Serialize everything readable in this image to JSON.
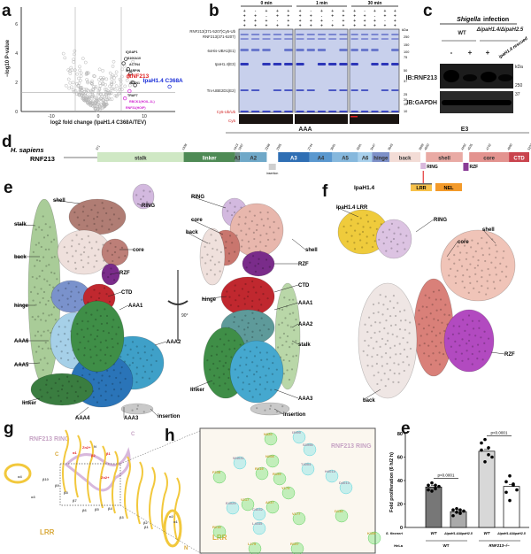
{
  "panels": {
    "a": "a",
    "b": "b",
    "c": "c",
    "d": "d",
    "e": "e",
    "f": "f",
    "g": "g",
    "h": "h",
    "e2": "e"
  },
  "volcano": {
    "chart_data": {
      "type": "scatter",
      "xlabel": "log2 fold change (IpaH1.4 C368A/TEV)",
      "ylabel": "−log10 P-value",
      "xlim": [
        -16,
        16
      ],
      "ylim": [
        0,
        6.5
      ],
      "xticks": [
        "-10",
        "0",
        "10"
      ],
      "yticks": [
        "0",
        "2",
        "4",
        "6"
      ],
      "thresholds": {
        "x": [
          -5,
          5
        ],
        "y": 1.3
      },
      "labeled_points": [
        {
          "label": "IQGAP1",
          "x": 6,
          "y": 3.6,
          "color": "#222222"
        },
        {
          "label": "S100A10",
          "x": 5.5,
          "y": 3.3,
          "color": "#222222"
        },
        {
          "label": "ACTN4",
          "x": 6.5,
          "y": 2.9,
          "color": "#222222"
        },
        {
          "label": "SHARPIN",
          "x": 7,
          "y": 2.6,
          "color": "#222222"
        },
        {
          "label": "RNF213",
          "x": 6.5,
          "y": 2.4,
          "color": "#e02020"
        },
        {
          "label": "ACTN1",
          "x": 7.5,
          "y": 2.0,
          "color": "#222222"
        },
        {
          "label": "IpaH1.4 C368A",
          "x": 15.5,
          "y": 1.7,
          "color": "#1a2ed8"
        },
        {
          "label": "TRAF7",
          "x": 8,
          "y": 1.8,
          "color": "#222222"
        },
        {
          "label": "RBCK1(HOIL-1L)",
          "x": 6.8,
          "y": 1.4,
          "color": "#d020d0"
        },
        {
          "label": "RNF31(HOIP)",
          "x": 5.8,
          "y": 0.9,
          "color": "#d020d0"
        }
      ]
    }
  },
  "gel": {
    "timepoints": [
      "0 min",
      "1 min",
      "30 min"
    ],
    "rows": [
      {
        "name": "E3",
        "values": [
          "+",
          "-",
          "+",
          "+",
          "+"
        ]
      },
      {
        "name": "E2",
        "values": [
          "+",
          "+",
          "-",
          "+",
          "+"
        ]
      },
      {
        "name": "E1",
        "values": [
          "+",
          "+",
          "+",
          "-",
          "+"
        ]
      },
      {
        "name": "ATP",
        "values": [
          "+",
          "+",
          "+",
          "+",
          "+"
        ]
      }
    ],
    "band_labels": [
      "RNF213(371-5207)Cy5-Ub",
      "RNF213(371-5207)",
      "6xHis-UBA1(E1)",
      "IpaH1.4(E3)",
      "Trx-UBE2D1(E2)",
      "Cy5-Ub/Ub"
    ],
    "cy5_label": "Cy5",
    "kda": "kDa",
    "markers": [
      "250",
      "150",
      "100",
      "75",
      "50",
      "37",
      "25",
      "20",
      "15",
      "10"
    ]
  },
  "western": {
    "title_italic": "Shigella",
    "title": "infection",
    "groups": [
      "WT",
      "ΔipaH1.4/ΔipaH2.5"
    ],
    "lanes": [
      "-",
      "+",
      "+",
      "ipaH1.4 rescued"
    ],
    "blots": [
      "IB:RNF213",
      "IB:GAPDH"
    ],
    "kda": "kDa",
    "markers": [
      "250",
      "37"
    ]
  },
  "domain_map": {
    "species": "H. sapiens",
    "protein": "RNF213",
    "group_labels": [
      "AAA",
      "E3"
    ],
    "domains": [
      {
        "name": "stalk",
        "start": 371,
        "end": 1338,
        "color": "#cfe8c4"
      },
      {
        "name": "linker",
        "start": 1338,
        "end": 1913,
        "color": "#4e8a55"
      },
      {
        "name": "A1",
        "start": 1913,
        "end": 1967,
        "color": "#6f8e8c"
      },
      {
        "name": "A2",
        "start": 1967,
        "end": 2268,
        "color": "#6fa8c8"
      },
      {
        "name": "A3",
        "start": 2395,
        "end": 2744,
        "color": "#2f6fb4"
      },
      {
        "name": "A4",
        "start": 2744,
        "end": 3001,
        "color": "#5a98cf"
      },
      {
        "name": "A5",
        "start": 3001,
        "end": 3291,
        "color": "#86b8dd"
      },
      {
        "name": "A6",
        "start": 3291,
        "end": 3447,
        "color": "#a8d0ec"
      },
      {
        "name": "hinge",
        "start": 3447,
        "end": 3643,
        "color": "#7d90c8"
      },
      {
        "name": "back",
        "start": 3643,
        "end": 3989,
        "color": "#f3dcd6"
      },
      {
        "name": "shell",
        "start": 4050,
        "end": 4462,
        "color": "#e9aaa4"
      },
      {
        "name": "core",
        "start": 4535,
        "end": 4980,
        "color": "#e3938f"
      },
      {
        "name": "CTD",
        "start": 4980,
        "end": 5207,
        "color": "#c9434d"
      }
    ],
    "boundaries": [
      "371",
      "1338",
      "1913",
      "1967",
      "2268",
      "2395",
      "2744",
      "3001",
      "3291",
      "3447",
      "3643",
      "3989",
      "4050",
      "4462",
      "4535",
      "4742",
      "4980",
      "5207"
    ],
    "insertion": "insertion",
    "ring": "RING",
    "rzf": "RZF",
    "ipah": {
      "name": "IpaH1.4",
      "domains": [
        "LRR",
        "NEL"
      ]
    }
  },
  "structure_e": {
    "left_labels": [
      "shell",
      "RING",
      "stalk",
      "back",
      "core",
      "RZF",
      "CTD",
      "hinge",
      "AAA1",
      "AAA6",
      "AAA2",
      "AAA5",
      "linker",
      "AAA4",
      "AAA3",
      "insertion"
    ],
    "right_labels": [
      "RING",
      "core",
      "back",
      "shell",
      "RZF",
      "CTD",
      "hinge",
      "AAA1",
      "AAA2",
      "stalk",
      "linker",
      "AAA3",
      "insertion"
    ],
    "rotation": "90°"
  },
  "structure_f": {
    "labels": [
      "IpaH1.4 LRR",
      "RING",
      "core",
      "shell",
      "RZF",
      "back"
    ]
  },
  "panel_g": {
    "title": "RNF213 RING",
    "lrr": "LRR",
    "labels": [
      "C",
      "α1",
      "Zn2+",
      "N",
      "β2",
      "β1",
      "Zn2+",
      "C",
      "α4",
      "β10",
      "β9",
      "β8",
      "α3",
      "β7",
      "β6",
      "β5",
      "β4",
      "β3",
      "β2",
      "β1",
      "α2",
      "α1",
      "N"
    ]
  },
  "panel_h": {
    "title": "RNF213 RING",
    "lrr": "LRR",
    "residues": [
      "N320",
      "I3990",
      "S3998",
      "N208",
      "W4031",
      "R219",
      "T4004",
      "R199",
      "H4014",
      "F238",
      "D4013",
      "Y179",
      "E4029",
      "V217",
      "A237",
      "C4032",
      "V177",
      "D146",
      "R218",
      "L4035",
      "K108",
      "L175",
      "R157"
    ]
  },
  "bar": {
    "chart_data": {
      "type": "bar",
      "ylabel": "Fold proliferation (6 h/2 h)",
      "ylim": [
        0,
        80
      ],
      "yticks": [
        "0",
        "20",
        "40",
        "60",
        "80"
      ],
      "categories": [
        "WT",
        "ΔipaH1.4/ΔipaH2.5",
        "WT",
        "ΔipaH1.4/ΔipaH2.5"
      ],
      "values": [
        34.5,
        13.5,
        65,
        35
      ],
      "points": [
        [
          36,
          38,
          33,
          35,
          32,
          31,
          36
        ],
        [
          15,
          16,
          12,
          14,
          10,
          13,
          15
        ],
        [
          72,
          75,
          62,
          60,
          66,
          56,
          68
        ],
        [
          39,
          44,
          36,
          32,
          30,
          23,
          37
        ]
      ],
      "bar_colors": [
        "#777777",
        "#aaaaaa",
        "#d8d8d8",
        "#ffffff"
      ],
      "row_labels": {
        "strain": "S. flexneri",
        "host": "HeLa"
      },
      "host_groups": [
        "WT",
        "RNF213−/−"
      ],
      "annotations": [
        "p<0.0001",
        "p<0.0001"
      ]
    }
  }
}
